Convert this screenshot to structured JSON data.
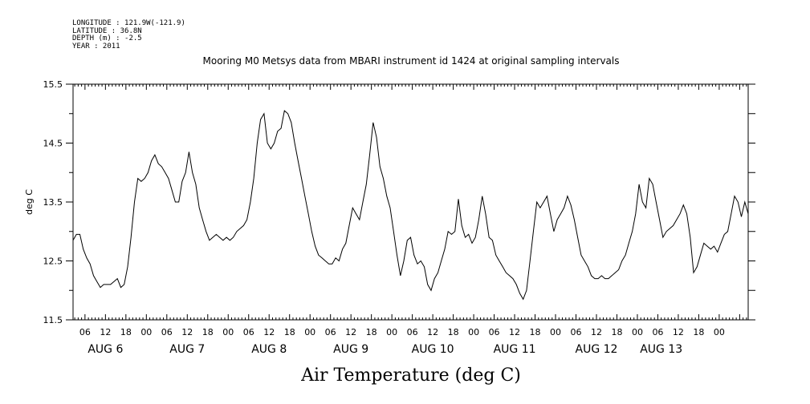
{
  "header": {
    "longitude": "LONGITUDE : 121.9W(-121.9)",
    "latitude": "LATITUDE : 36.8N",
    "depth": "DEPTH (m) : -2.5",
    "year": "YEAR : 2011"
  },
  "chart_data": {
    "type": "line",
    "title": "Mooring M0 Metsys data from MBARI instrument id 1424 at original sampling intervals",
    "xlabel": "Air Temperature (deg C)",
    "ylabel": "deg C",
    "ylim": [
      11.5,
      15.5
    ],
    "xlim_hours": [
      2.5,
      200.5
    ],
    "x_origin": "AUG 6 00:00",
    "yticks": [
      "15.5",
      "14.5",
      "13.5",
      "12.5",
      "11.5"
    ],
    "hour_ticks": [
      "06",
      "12",
      "18",
      "00",
      "06",
      "12",
      "18",
      "00",
      "06",
      "12",
      "18",
      "00",
      "06",
      "12",
      "18",
      "00",
      "06",
      "12",
      "18",
      "00",
      "06",
      "12",
      "18",
      "00",
      "06",
      "12",
      "18",
      "00",
      "06",
      "12",
      "18",
      "00"
    ],
    "day_labels": [
      "AUG  6",
      "AUG  7",
      "AUG  8",
      "AUG  9",
      "AUG 10",
      "AUG 11",
      "AUG 12",
      "AUG 13"
    ],
    "grid": false,
    "series": [
      {
        "name": "",
        "points": [
          [
            2.5,
            12.85
          ],
          [
            3.5,
            12.95
          ],
          [
            4.5,
            12.95
          ],
          [
            5.5,
            12.7
          ],
          [
            6.5,
            12.55
          ],
          [
            7.5,
            12.45
          ],
          [
            8.5,
            12.25
          ],
          [
            9.5,
            12.15
          ],
          [
            10.5,
            12.05
          ],
          [
            11.5,
            12.1
          ],
          [
            12.5,
            12.1
          ],
          [
            13.5,
            12.1
          ],
          [
            14.5,
            12.15
          ],
          [
            15.5,
            12.2
          ],
          [
            16.5,
            12.05
          ],
          [
            17.5,
            12.1
          ],
          [
            18.5,
            12.4
          ],
          [
            19.5,
            12.9
          ],
          [
            20.5,
            13.5
          ],
          [
            21.5,
            13.9
          ],
          [
            22.5,
            13.85
          ],
          [
            23.5,
            13.9
          ],
          [
            24.5,
            14.0
          ],
          [
            25.5,
            14.2
          ],
          [
            26.5,
            14.3
          ],
          [
            27.5,
            14.15
          ],
          [
            28.5,
            14.1
          ],
          [
            29.5,
            14.0
          ],
          [
            30.5,
            13.9
          ],
          [
            31.5,
            13.7
          ],
          [
            32.5,
            13.5
          ],
          [
            33.5,
            13.5
          ],
          [
            34.5,
            13.85
          ],
          [
            35.5,
            14.0
          ],
          [
            36.5,
            14.35
          ],
          [
            37.5,
            14.0
          ],
          [
            38.5,
            13.8
          ],
          [
            39.5,
            13.4
          ],
          [
            40.5,
            13.2
          ],
          [
            41.5,
            13.0
          ],
          [
            42.5,
            12.85
          ],
          [
            43.5,
            12.9
          ],
          [
            44.5,
            12.95
          ],
          [
            45.5,
            12.9
          ],
          [
            46.5,
            12.85
          ],
          [
            47.5,
            12.9
          ],
          [
            48.5,
            12.85
          ],
          [
            49.5,
            12.9
          ],
          [
            50.5,
            13.0
          ],
          [
            51.5,
            13.05
          ],
          [
            52.5,
            13.1
          ],
          [
            53.5,
            13.2
          ],
          [
            54.5,
            13.5
          ],
          [
            55.5,
            13.9
          ],
          [
            56.5,
            14.5
          ],
          [
            57.5,
            14.9
          ],
          [
            58.5,
            15.0
          ],
          [
            59.5,
            14.5
          ],
          [
            60.5,
            14.4
          ],
          [
            61.5,
            14.5
          ],
          [
            62.5,
            14.7
          ],
          [
            63.5,
            14.75
          ],
          [
            64.5,
            15.05
          ],
          [
            65.5,
            15.0
          ],
          [
            66.5,
            14.85
          ],
          [
            67.5,
            14.5
          ],
          [
            68.5,
            14.2
          ],
          [
            69.5,
            13.9
          ],
          [
            70.5,
            13.6
          ],
          [
            71.5,
            13.3
          ],
          [
            72.5,
            13.0
          ],
          [
            73.5,
            12.75
          ],
          [
            74.5,
            12.6
          ],
          [
            75.5,
            12.55
          ],
          [
            76.5,
            12.5
          ],
          [
            77.5,
            12.45
          ],
          [
            78.5,
            12.45
          ],
          [
            79.5,
            12.55
          ],
          [
            80.5,
            12.5
          ],
          [
            81.5,
            12.7
          ],
          [
            82.5,
            12.8
          ],
          [
            83.5,
            13.1
          ],
          [
            84.5,
            13.4
          ],
          [
            85.5,
            13.3
          ],
          [
            86.5,
            13.2
          ],
          [
            87.5,
            13.5
          ],
          [
            88.5,
            13.8
          ],
          [
            89.5,
            14.3
          ],
          [
            90.5,
            14.85
          ],
          [
            91.5,
            14.6
          ],
          [
            92.5,
            14.1
          ],
          [
            93.5,
            13.9
          ],
          [
            94.5,
            13.6
          ],
          [
            95.5,
            13.4
          ],
          [
            96.5,
            13.0
          ],
          [
            97.5,
            12.6
          ],
          [
            98.5,
            12.25
          ],
          [
            99.5,
            12.5
          ],
          [
            100.5,
            12.85
          ],
          [
            101.5,
            12.9
          ],
          [
            102.5,
            12.6
          ],
          [
            103.5,
            12.45
          ],
          [
            104.5,
            12.5
          ],
          [
            105.5,
            12.4
          ],
          [
            106.5,
            12.1
          ],
          [
            107.5,
            12.0
          ],
          [
            108.5,
            12.2
          ],
          [
            109.5,
            12.3
          ],
          [
            110.5,
            12.5
          ],
          [
            111.5,
            12.7
          ],
          [
            112.5,
            13.0
          ],
          [
            113.5,
            12.95
          ],
          [
            114.5,
            13.0
          ],
          [
            115.5,
            13.55
          ],
          [
            116.5,
            13.1
          ],
          [
            117.5,
            12.9
          ],
          [
            118.5,
            12.95
          ],
          [
            119.5,
            12.8
          ],
          [
            120.5,
            12.9
          ],
          [
            121.5,
            13.2
          ],
          [
            122.5,
            13.6
          ],
          [
            123.5,
            13.3
          ],
          [
            124.5,
            12.9
          ],
          [
            125.5,
            12.85
          ],
          [
            126.5,
            12.6
          ],
          [
            127.5,
            12.5
          ],
          [
            128.5,
            12.4
          ],
          [
            129.5,
            12.3
          ],
          [
            130.5,
            12.25
          ],
          [
            131.5,
            12.2
          ],
          [
            132.5,
            12.1
          ],
          [
            133.5,
            11.95
          ],
          [
            134.5,
            11.85
          ],
          [
            135.5,
            12.0
          ],
          [
            136.5,
            12.5
          ],
          [
            137.5,
            13.0
          ],
          [
            138.5,
            13.5
          ],
          [
            139.5,
            13.4
          ],
          [
            140.5,
            13.5
          ],
          [
            141.5,
            13.6
          ],
          [
            142.5,
            13.3
          ],
          [
            143.5,
            13.0
          ],
          [
            144.5,
            13.2
          ],
          [
            145.5,
            13.3
          ],
          [
            146.5,
            13.4
          ],
          [
            147.5,
            13.6
          ],
          [
            148.5,
            13.45
          ],
          [
            149.5,
            13.2
          ],
          [
            150.5,
            12.9
          ],
          [
            151.5,
            12.6
          ],
          [
            152.5,
            12.5
          ],
          [
            153.5,
            12.4
          ],
          [
            154.5,
            12.25
          ],
          [
            155.5,
            12.2
          ],
          [
            156.5,
            12.2
          ],
          [
            157.5,
            12.25
          ],
          [
            158.5,
            12.2
          ],
          [
            159.5,
            12.2
          ],
          [
            160.5,
            12.25
          ],
          [
            161.5,
            12.3
          ],
          [
            162.5,
            12.35
          ],
          [
            163.5,
            12.5
          ],
          [
            164.5,
            12.6
          ],
          [
            165.5,
            12.8
          ],
          [
            166.5,
            13.0
          ],
          [
            167.5,
            13.3
          ],
          [
            168.5,
            13.8
          ],
          [
            169.5,
            13.5
          ],
          [
            170.5,
            13.4
          ],
          [
            171.5,
            13.9
          ],
          [
            172.5,
            13.8
          ],
          [
            173.5,
            13.5
          ],
          [
            174.5,
            13.2
          ],
          [
            175.5,
            12.9
          ],
          [
            176.5,
            13.0
          ],
          [
            177.5,
            13.05
          ],
          [
            178.5,
            13.1
          ],
          [
            179.5,
            13.2
          ],
          [
            180.5,
            13.3
          ],
          [
            181.5,
            13.45
          ],
          [
            182.5,
            13.3
          ],
          [
            183.5,
            12.9
          ],
          [
            184.5,
            12.3
          ],
          [
            185.5,
            12.4
          ],
          [
            186.5,
            12.6
          ],
          [
            187.5,
            12.8
          ],
          [
            188.5,
            12.75
          ],
          [
            189.5,
            12.7
          ],
          [
            190.5,
            12.75
          ],
          [
            191.5,
            12.65
          ],
          [
            192.5,
            12.8
          ],
          [
            193.5,
            12.95
          ],
          [
            194.5,
            13.0
          ],
          [
            195.5,
            13.3
          ],
          [
            196.5,
            13.6
          ],
          [
            197.5,
            13.5
          ],
          [
            198.5,
            13.25
          ],
          [
            199.5,
            13.5
          ],
          [
            200.5,
            13.3
          ]
        ]
      }
    ]
  }
}
